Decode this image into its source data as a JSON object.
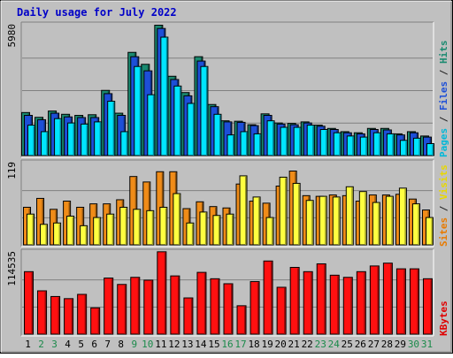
{
  "chart_data": [
    {
      "type": "bar",
      "title": "Daily usage for July 2022",
      "panel": "top",
      "ymax_label": "5980",
      "ylim": [
        0,
        5980
      ],
      "categories": [
        "1",
        "2",
        "3",
        "4",
        "5",
        "6",
        "7",
        "8",
        "9",
        "10",
        "11",
        "12",
        "13",
        "14",
        "15",
        "16",
        "17",
        "18",
        "19",
        "20",
        "21",
        "22",
        "23",
        "24",
        "25",
        "26",
        "27",
        "28",
        "29",
        "30",
        "31"
      ],
      "side_label": [
        {
          "text": "Pages",
          "color": "#00b8d8"
        },
        {
          "text": " / ",
          "color": "#202020"
        },
        {
          "text": "Files",
          "color": "#1d4fd8"
        },
        {
          "text": " / ",
          "color": "#202020"
        },
        {
          "text": "Hits",
          "color": "#1a8a70"
        }
      ],
      "series": [
        {
          "name": "Hits",
          "color": "#1a8a70",
          "values": [
            1980,
            1760,
            2050,
            1900,
            1850,
            1880,
            3000,
            1950,
            4750,
            4200,
            6000,
            3650,
            2900,
            4550,
            2350,
            1600,
            1580,
            1420,
            1920,
            1500,
            1480,
            1550,
            1400,
            1250,
            1100,
            1050,
            1250,
            1250,
            1000,
            1100,
            900
          ]
        },
        {
          "name": "Files",
          "color": "#1d4fd8",
          "values": [
            1850,
            1650,
            1950,
            1780,
            1750,
            1750,
            2850,
            1850,
            4550,
            3900,
            5850,
            3500,
            2750,
            4350,
            2250,
            1550,
            1530,
            1380,
            1850,
            1450,
            1420,
            1500,
            1350,
            1200,
            1050,
            1000,
            1200,
            1180,
            950,
            1050,
            850
          ]
        },
        {
          "name": "Pages",
          "color": "#00e5ff",
          "values": [
            1400,
            1100,
            1700,
            1500,
            1450,
            1550,
            2500,
            1100,
            4100,
            2800,
            5450,
            3200,
            2400,
            4100,
            1900,
            950,
            1100,
            1000,
            1600,
            1300,
            1300,
            1400,
            1200,
            1050,
            900,
            850,
            1050,
            1000,
            700,
            800,
            550
          ]
        }
      ]
    },
    {
      "type": "bar",
      "panel": "middle",
      "ymax_label": "119",
      "ylim": [
        0,
        119
      ],
      "side_label": [
        {
          "text": "Sites",
          "color": "#e87a00"
        },
        {
          "text": " / ",
          "color": "#202020"
        },
        {
          "text": "Visits",
          "color": "#e8d800"
        }
      ],
      "series": [
        {
          "name": "Sites",
          "color": "#f08c18",
          "values": [
            55,
            68,
            52,
            64,
            55,
            60,
            60,
            66,
            100,
            92,
            107,
            107,
            53,
            63,
            56,
            54,
            89,
            64,
            61,
            86,
            108,
            72,
            71,
            73,
            72,
            64,
            73,
            73,
            74,
            67,
            51
          ]
        },
        {
          "name": "Visits",
          "color": "#ffff40",
          "values": [
            45,
            30,
            32,
            42,
            28,
            40,
            45,
            55,
            52,
            50,
            55,
            75,
            32,
            48,
            43,
            45,
            101,
            70,
            40,
            99,
            90,
            65,
            71,
            70,
            85,
            78,
            62,
            71,
            83,
            60,
            40
          ]
        }
      ]
    },
    {
      "type": "bar",
      "panel": "bottom",
      "ymax_label": "114535",
      "ylim": [
        0,
        114535
      ],
      "side_label": [
        {
          "text": "KBytes",
          "color": "#e00000"
        }
      ],
      "series": [
        {
          "name": "KBytes",
          "color": "#ff1010",
          "values": [
            88000,
            61000,
            53000,
            50000,
            56000,
            37000,
            79000,
            70000,
            80000,
            76000,
            116000,
            82000,
            51000,
            87000,
            78000,
            71000,
            40000,
            74000,
            103000,
            66000,
            94000,
            88000,
            99000,
            83000,
            80000,
            88000,
            96000,
            100000,
            92000,
            92000,
            78000
          ]
        }
      ]
    }
  ]
}
